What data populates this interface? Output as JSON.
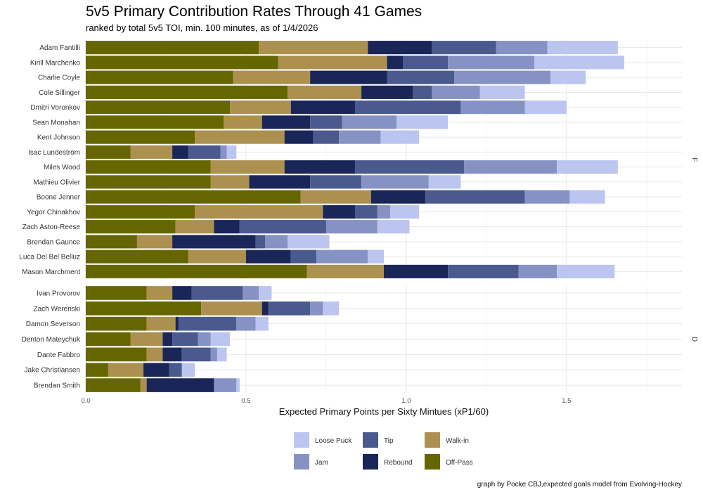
{
  "chart_data": {
    "type": "bar",
    "orientation": "horizontal",
    "stacked": true,
    "title": "5v5 Primary Contribution Rates Through 41 Games",
    "subtitle": "ranked by total 5v5 TOI, min. 100 minutes, as of 1/4/2026",
    "xlabel": "Expected Primary Points per Sixty Mintues (xP1/60)",
    "caption": "graph by Pocke CBJ,expected goals model from Evolving-Hockey",
    "xlim": [
      0,
      1.86
    ],
    "xticks": [
      0.0,
      0.5,
      1.0,
      1.5
    ],
    "xtick_labels": [
      "0.0",
      "0.5",
      "1.0",
      "1.5"
    ],
    "grid": true,
    "stack_order": [
      "Off-Pass",
      "Walk-in",
      "Rebound",
      "Tip",
      "Jam",
      "Loose Puck"
    ],
    "colors": {
      "Off-Pass": "#666600",
      "Walk-in": "#AB9050",
      "Rebound": "#1A2558",
      "Tip": "#4A5A8E",
      "Jam": "#8792C4",
      "Loose Puck": "#BCC5F0"
    },
    "legend": {
      "position": "bottom",
      "entries": [
        "Loose Puck",
        "Tip",
        "Walk-in",
        "Jam",
        "Rebound",
        "Off-Pass"
      ]
    },
    "facets": [
      {
        "label": "F",
        "players": [
          {
            "name": "Adam Fantilli",
            "values": [
              0.54,
              0.34,
              0.2,
              0.2,
              0.16,
              0.22
            ]
          },
          {
            "name": "Kirill Marchenko",
            "values": [
              0.6,
              0.34,
              0.05,
              0.14,
              0.27,
              0.28
            ]
          },
          {
            "name": "Charlie Coyle",
            "values": [
              0.46,
              0.24,
              0.24,
              0.21,
              0.3,
              0.11
            ]
          },
          {
            "name": "Cole Sillinger",
            "values": [
              0.63,
              0.23,
              0.16,
              0.06,
              0.15,
              0.14
            ]
          },
          {
            "name": "Dmitri Voronkov",
            "values": [
              0.45,
              0.19,
              0.2,
              0.33,
              0.2,
              0.13
            ]
          },
          {
            "name": "Sean Monahan",
            "values": [
              0.43,
              0.12,
              0.15,
              0.1,
              0.17,
              0.16
            ]
          },
          {
            "name": "Kent Johnson",
            "values": [
              0.34,
              0.28,
              0.09,
              0.08,
              0.13,
              0.12
            ]
          },
          {
            "name": "Isac Lundeström",
            "values": [
              0.14,
              0.13,
              0.05,
              0.1,
              0.02,
              0.03
            ]
          },
          {
            "name": "Miles Wood",
            "values": [
              0.39,
              0.23,
              0.22,
              0.34,
              0.29,
              0.19
            ]
          },
          {
            "name": "Mathieu Olivier",
            "values": [
              0.39,
              0.12,
              0.19,
              0.16,
              0.21,
              0.1
            ]
          },
          {
            "name": "Boone Jenner",
            "values": [
              0.67,
              0.22,
              0.17,
              0.31,
              0.14,
              0.11
            ]
          },
          {
            "name": "Yegor Chinakhov",
            "values": [
              0.34,
              0.4,
              0.1,
              0.07,
              0.04,
              0.09
            ]
          },
          {
            "name": "Zach Aston-Reese",
            "values": [
              0.28,
              0.12,
              0.08,
              0.27,
              0.16,
              0.1
            ]
          },
          {
            "name": "Brendan Gaunce",
            "values": [
              0.16,
              0.11,
              0.26,
              0.03,
              0.07,
              0.13
            ]
          },
          {
            "name": "Luca Del Bel Belluz",
            "values": [
              0.32,
              0.18,
              0.14,
              0.08,
              0.16,
              0.05
            ]
          },
          {
            "name": "Mason Marchment",
            "values": [
              0.69,
              0.24,
              0.2,
              0.22,
              0.12,
              0.18
            ]
          }
        ]
      },
      {
        "label": "D",
        "players": [
          {
            "name": "Ivan Provorov",
            "values": [
              0.19,
              0.08,
              0.06,
              0.16,
              0.05,
              0.04
            ]
          },
          {
            "name": "Zach Werenski",
            "values": [
              0.36,
              0.19,
              0.02,
              0.13,
              0.04,
              0.05
            ]
          },
          {
            "name": "Damon Severson",
            "values": [
              0.19,
              0.09,
              0.01,
              0.18,
              0.06,
              0.04
            ]
          },
          {
            "name": "Denton Mateychuk",
            "values": [
              0.14,
              0.1,
              0.03,
              0.08,
              0.04,
              0.06
            ]
          },
          {
            "name": "Dante Fabbro",
            "values": [
              0.19,
              0.05,
              0.06,
              0.09,
              0.02,
              0.03
            ]
          },
          {
            "name": "Jake Christiansen",
            "values": [
              0.07,
              0.11,
              0.08,
              0.04,
              0.0,
              0.04
            ]
          },
          {
            "name": "Brendan Smith",
            "values": [
              0.17,
              0.02,
              0.21,
              0.0,
              0.07,
              0.01
            ]
          }
        ]
      }
    ]
  }
}
